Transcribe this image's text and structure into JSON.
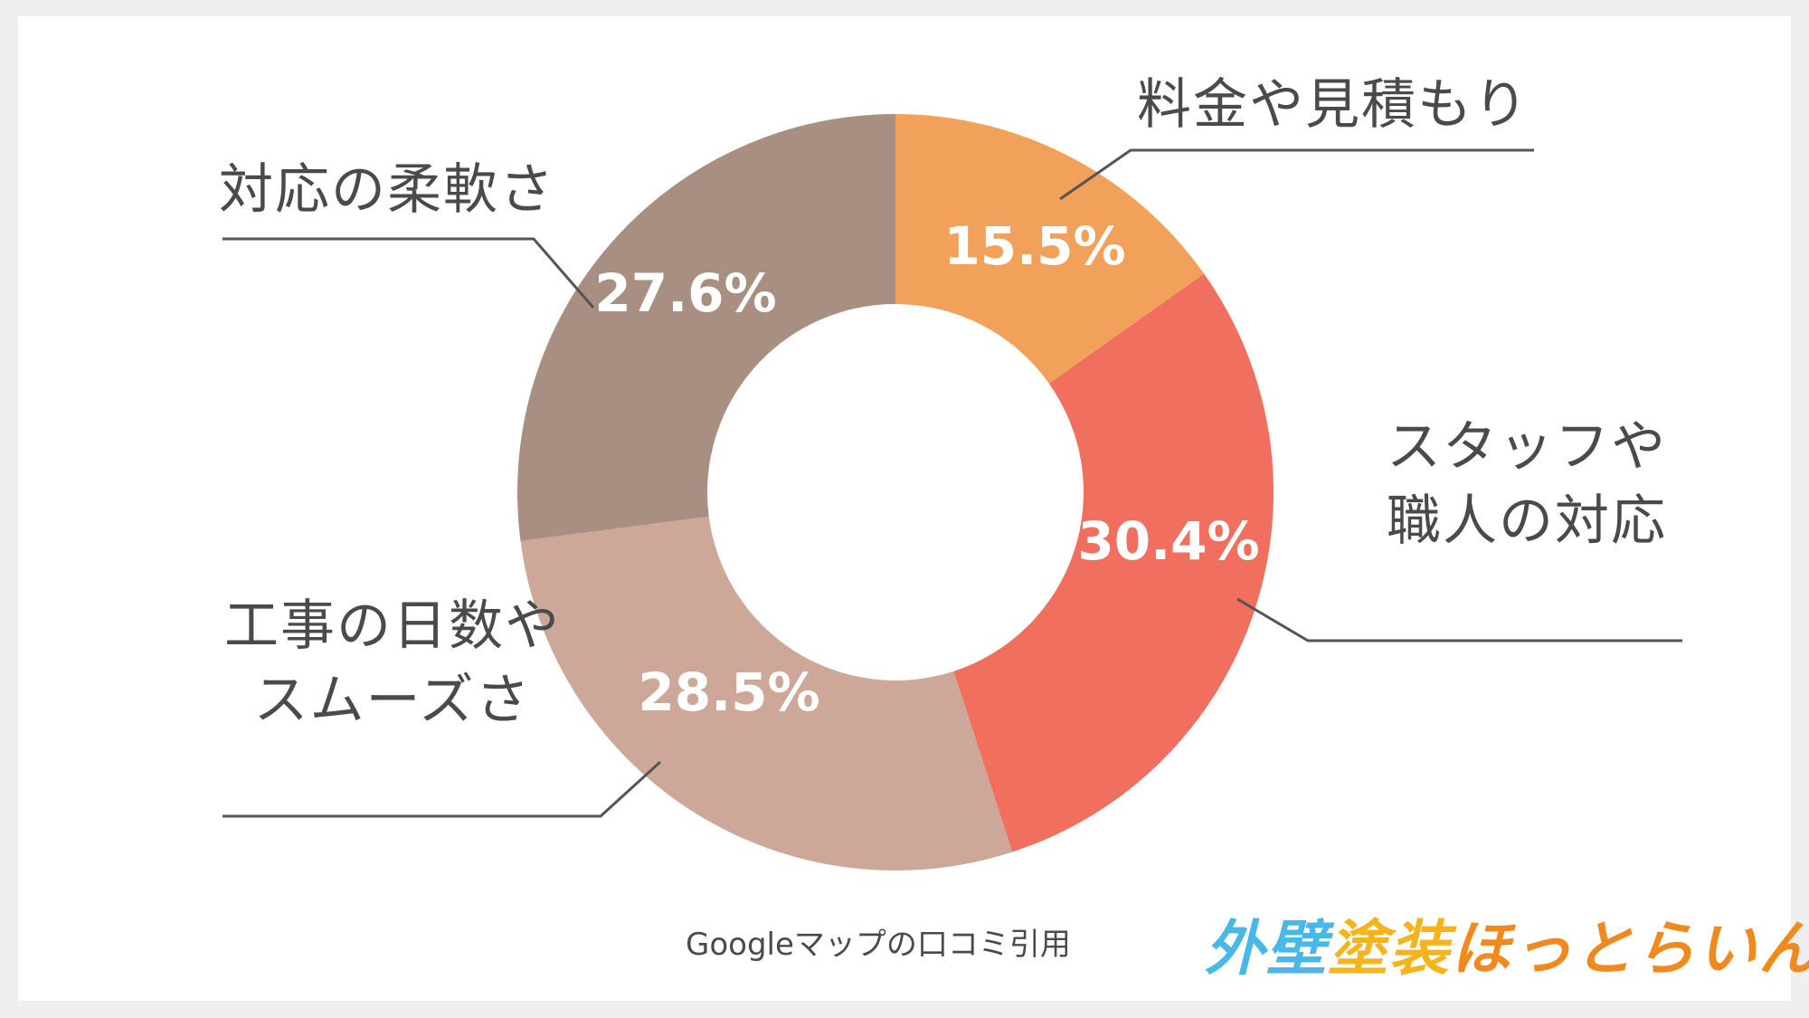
{
  "chart_data": {
    "type": "pie",
    "donut": true,
    "categories": [
      "料金や見積もり",
      "スタッフや職人の対応",
      "工事の日数やスムーズさ",
      "対応の柔軟さ"
    ],
    "label_lines": [
      [
        "料金や見積もり"
      ],
      [
        "スタッフや",
        "職人の対応"
      ],
      [
        "工事の日数や",
        "スムーズさ"
      ],
      [
        "対応の柔軟さ"
      ]
    ],
    "values": [
      15.5,
      30.4,
      28.5,
      27.6
    ],
    "value_labels": [
      "15.5%",
      "30.4%",
      "28.5%",
      "27.6%"
    ],
    "colors": [
      "#f2a15b",
      "#f06f5e",
      "#cda898",
      "#a88f82"
    ],
    "legend": "none (leader-line labels)"
  },
  "source_note": "Googleマップの口コミ引用",
  "logo": {
    "text": "外壁塗装ほっとらいん",
    "colors": [
      "#49b7e8",
      "#f5b41c",
      "#f08a1f"
    ]
  }
}
